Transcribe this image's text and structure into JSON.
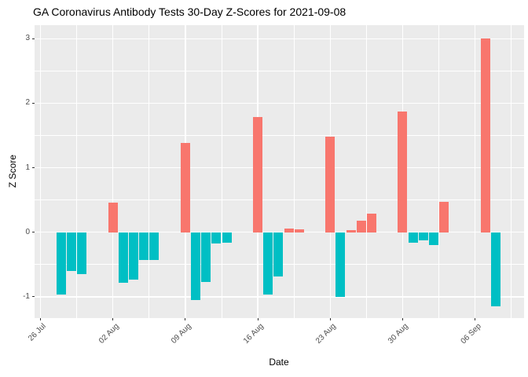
{
  "chart_data": {
    "type": "bar",
    "title": "GA Coronavirus Antibody Tests 30-Day Z-Scores for 2021-09-08",
    "xlabel": "Date",
    "ylabel": "Z Score",
    "legend": "none",
    "grid": true,
    "date_origin": "2021-07-26",
    "xlim_days": [
      -0.56,
      46.73
    ],
    "ylim": [
      -1.33,
      3.21
    ],
    "y_ticks": [
      3,
      2,
      1,
      0,
      -1
    ],
    "y_minor_ticks": [
      2.5,
      1.5,
      0.5,
      -0.5
    ],
    "x_ticks": [
      {
        "date": "2021-07-26",
        "label": "26 Jul"
      },
      {
        "date": "2021-08-02",
        "label": "02 Aug"
      },
      {
        "date": "2021-08-09",
        "label": "09 Aug"
      },
      {
        "date": "2021-08-16",
        "label": "16 Aug"
      },
      {
        "date": "2021-08-23",
        "label": "23 Aug"
      },
      {
        "date": "2021-08-30",
        "label": "30 Aug"
      },
      {
        "date": "2021-09-06",
        "label": "06 Sep"
      }
    ],
    "colors": {
      "positive": "#F8766D",
      "negative": "#00BFC4",
      "panel_bg": "#EBEBEB",
      "grid": "#FFFFFF",
      "axis_text": "#4D4D4D",
      "tick_mark": "#333333",
      "title_text": "#000000"
    },
    "points": [
      {
        "date": "2021-07-28",
        "z": -0.97
      },
      {
        "date": "2021-07-29",
        "z": -0.6
      },
      {
        "date": "2021-07-30",
        "z": -0.65
      },
      {
        "date": "2021-08-02",
        "z": 0.46
      },
      {
        "date": "2021-08-03",
        "z": -0.78
      },
      {
        "date": "2021-08-04",
        "z": -0.73
      },
      {
        "date": "2021-08-05",
        "z": -0.43
      },
      {
        "date": "2021-08-06",
        "z": -0.43
      },
      {
        "date": "2021-08-09",
        "z": 1.39
      },
      {
        "date": "2021-08-10",
        "z": -1.05
      },
      {
        "date": "2021-08-11",
        "z": -0.77
      },
      {
        "date": "2021-08-12",
        "z": -0.17
      },
      {
        "date": "2021-08-13",
        "z": -0.16
      },
      {
        "date": "2021-08-16",
        "z": 1.78
      },
      {
        "date": "2021-08-17",
        "z": -0.96
      },
      {
        "date": "2021-08-18",
        "z": -0.68
      },
      {
        "date": "2021-08-19",
        "z": 0.06
      },
      {
        "date": "2021-08-20",
        "z": 0.04
      },
      {
        "date": "2021-08-23",
        "z": 1.48
      },
      {
        "date": "2021-08-24",
        "z": -1.0
      },
      {
        "date": "2021-08-25",
        "z": 0.03
      },
      {
        "date": "2021-08-26",
        "z": 0.18
      },
      {
        "date": "2021-08-27",
        "z": 0.29
      },
      {
        "date": "2021-08-30",
        "z": 1.87
      },
      {
        "date": "2021-08-31",
        "z": -0.16
      },
      {
        "date": "2021-09-01",
        "z": -0.13
      },
      {
        "date": "2021-09-02",
        "z": -0.2
      },
      {
        "date": "2021-09-03",
        "z": 0.47
      },
      {
        "date": "2021-09-07",
        "z": 3.0
      },
      {
        "date": "2021-09-08",
        "z": -1.15
      }
    ]
  }
}
